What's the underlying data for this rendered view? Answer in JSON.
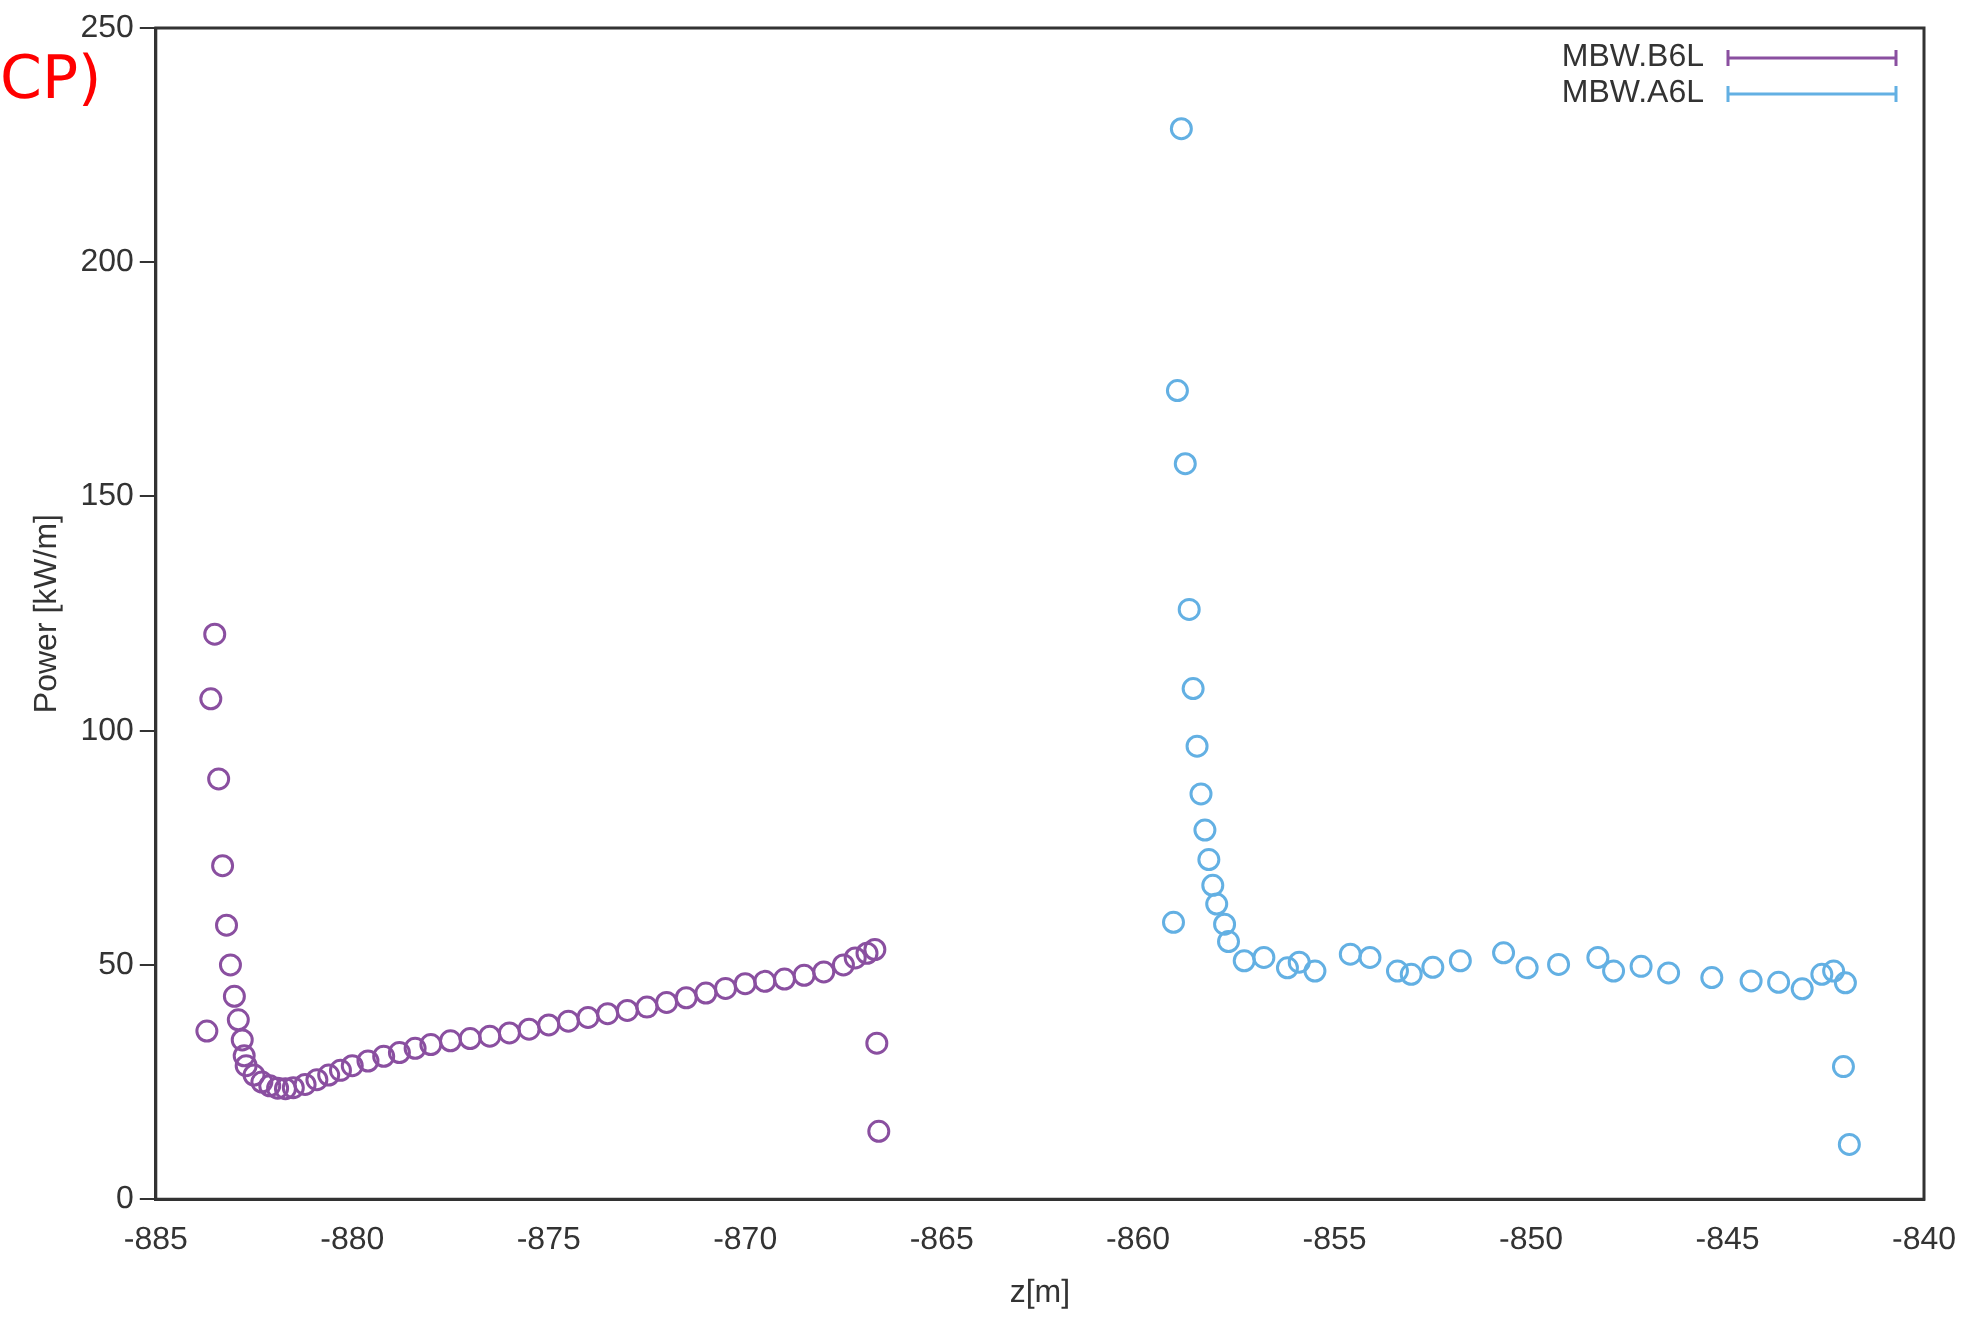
{
  "chart_data": {
    "type": "scatter",
    "xlabel": "z[m]",
    "ylabel": "Power [kW/m]",
    "annotations": [
      "CP)"
    ],
    "xlim": [
      -885,
      -840
    ],
    "xticks": [
      -885,
      -880,
      -875,
      -870,
      -865,
      -860,
      -855,
      -850,
      -845,
      -840
    ],
    "ylim": [
      0,
      250
    ],
    "yticks": [
      0,
      50,
      100,
      150,
      200,
      250
    ],
    "grid": false,
    "legend": "top right",
    "marker": "circle",
    "series": [
      {
        "name": "MBW.B6L",
        "color": "#8a4fa0",
        "x": [
          -883.5,
          -883.6,
          -883.4,
          -883.3,
          -883.2,
          -883.1,
          -883.0,
          -882.9,
          -883.7,
          -882.8,
          -882.75,
          -882.7,
          -882.5,
          -882.3,
          -882.1,
          -881.9,
          -881.7,
          -881.5,
          -881.2,
          -880.9,
          -880.6,
          -880.3,
          -880,
          -879.6,
          -879.2,
          -878.8,
          -878.4,
          -878,
          -877.5,
          -877,
          -876.5,
          -876,
          -875.5,
          -875,
          -874.5,
          -874,
          -873.5,
          -873,
          -872.5,
          -872,
          -871.5,
          -871,
          -870.5,
          -870,
          -869.5,
          -869,
          -868.5,
          -868,
          -867.5,
          -867.2,
          -866.9,
          -866.7,
          -866.65,
          -866.6
        ],
        "values": [
          120.6,
          106.8,
          89.7,
          71.2,
          58.5,
          50,
          43.3,
          38.3,
          35.9,
          34,
          30.6,
          28.5,
          26.5,
          25,
          24.2,
          23.7,
          23.6,
          23.8,
          24.5,
          25.5,
          26.5,
          27.5,
          28.5,
          29.5,
          30.5,
          31.3,
          32.2,
          33,
          33.8,
          34.3,
          34.8,
          35.5,
          36.3,
          37.2,
          38,
          38.8,
          39.6,
          40.3,
          41,
          42,
          43,
          44,
          45,
          46,
          46.5,
          47,
          47.8,
          48.5,
          50,
          51.5,
          52.5,
          53.3,
          33.3,
          14.5
        ]
      },
      {
        "name": "MBW.A6L",
        "color": "#63b0e3",
        "x": [
          -858.9,
          -859.0,
          -858.8,
          -858.7,
          -858.6,
          -858.5,
          -858.4,
          -858.3,
          -858.2,
          -858.1,
          -858.0,
          -859.1,
          -857.8,
          -857.7,
          -857.3,
          -856.8,
          -856.2,
          -855.9,
          -855.5,
          -854.6,
          -854.1,
          -853.4,
          -853.05,
          -852.5,
          -851.8,
          -850.7,
          -850.1,
          -849.3,
          -848.3,
          -847.9,
          -847.2,
          -846.5,
          -845.4,
          -844.4,
          -843.7,
          -843.1,
          -842.6,
          -842.3,
          -842.0,
          -842.05,
          -841.9
        ],
        "values": [
          228.5,
          172.6,
          157,
          125.9,
          109,
          96.7,
          86.5,
          78.8,
          72.5,
          67,
          63,
          59.1,
          58.7,
          55,
          50.9,
          51.6,
          49.4,
          50.6,
          48.7,
          52.3,
          51.6,
          48.7,
          48,
          49.5,
          50.9,
          52.6,
          49.4,
          50.1,
          51.6,
          48.7,
          49.7,
          48.3,
          47.3,
          46.6,
          46.3,
          44.9,
          48,
          48.7,
          46.2,
          28.3,
          11.7
        ]
      }
    ]
  }
}
